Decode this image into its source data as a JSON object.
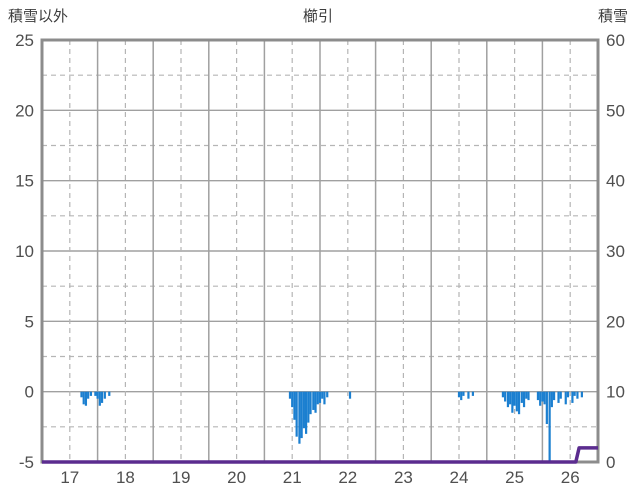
{
  "chart_data": {
    "type": "bar",
    "title": "櫛引",
    "left_axis": {
      "title": "積雪以外",
      "ticks": [
        25,
        20,
        15,
        10,
        5,
        0,
        -5
      ],
      "range": [
        -5,
        25
      ]
    },
    "right_axis": {
      "title": "積雪",
      "ticks": [
        60,
        50,
        40,
        30,
        20,
        10,
        0
      ],
      "range": [
        0,
        60
      ]
    },
    "x_axis": {
      "ticks": [
        17,
        18,
        19,
        20,
        21,
        22,
        23,
        24,
        25,
        26
      ],
      "range": [
        17,
        27
      ]
    },
    "grid": "on",
    "series": [
      {
        "name": "積雪以外",
        "type": "bar",
        "axis": "left",
        "color": "#1b7fd0",
        "points": [
          [
            17.71,
            -0.4
          ],
          [
            17.75,
            -0.9
          ],
          [
            17.79,
            -1.0
          ],
          [
            17.83,
            -0.5
          ],
          [
            17.88,
            -0.3
          ],
          [
            17.96,
            -0.3
          ],
          [
            18.0,
            -0.5
          ],
          [
            18.04,
            -1.0
          ],
          [
            18.08,
            -0.8
          ],
          [
            18.13,
            -0.5
          ],
          [
            18.21,
            -0.3
          ],
          [
            21.46,
            -0.5
          ],
          [
            21.5,
            -1.1
          ],
          [
            21.54,
            -2.0
          ],
          [
            21.58,
            -3.2
          ],
          [
            21.63,
            -3.7
          ],
          [
            21.67,
            -3.3
          ],
          [
            21.71,
            -2.6
          ],
          [
            21.75,
            -3.0
          ],
          [
            21.79,
            -2.2
          ],
          [
            21.83,
            -1.6
          ],
          [
            21.88,
            -1.3
          ],
          [
            21.92,
            -1.5
          ],
          [
            21.96,
            -0.9
          ],
          [
            22.0,
            -0.8
          ],
          [
            22.04,
            -0.5
          ],
          [
            22.08,
            -0.9
          ],
          [
            22.13,
            -0.4
          ],
          [
            22.54,
            -0.5
          ],
          [
            24.5,
            -0.4
          ],
          [
            24.54,
            -0.6
          ],
          [
            24.58,
            -0.3
          ],
          [
            24.67,
            -0.5
          ],
          [
            24.75,
            -0.3
          ],
          [
            25.29,
            -0.4
          ],
          [
            25.33,
            -0.7
          ],
          [
            25.38,
            -1.1
          ],
          [
            25.42,
            -0.9
          ],
          [
            25.46,
            -1.5
          ],
          [
            25.5,
            -1.0
          ],
          [
            25.54,
            -1.4
          ],
          [
            25.58,
            -1.6
          ],
          [
            25.63,
            -0.8
          ],
          [
            25.67,
            -1.1
          ],
          [
            25.71,
            -0.5
          ],
          [
            25.75,
            -0.6
          ],
          [
            25.92,
            -0.6
          ],
          [
            25.96,
            -1.0
          ],
          [
            26.0,
            -0.7
          ],
          [
            26.04,
            -0.9
          ],
          [
            26.08,
            -2.3
          ],
          [
            26.13,
            -5.0
          ],
          [
            26.17,
            -1.1
          ],
          [
            26.21,
            -0.6
          ],
          [
            26.29,
            -0.8
          ],
          [
            26.33,
            -0.5
          ],
          [
            26.42,
            -0.9
          ],
          [
            26.46,
            -0.4
          ],
          [
            26.54,
            -0.8
          ],
          [
            26.58,
            -0.3
          ],
          [
            26.63,
            -0.5
          ],
          [
            26.71,
            -0.4
          ]
        ]
      },
      {
        "name": "積雪",
        "type": "line",
        "axis": "right",
        "color": "#5b2c8f",
        "points": [
          [
            17,
            0
          ],
          [
            26.6,
            0
          ],
          [
            26.66,
            2
          ],
          [
            27,
            2
          ]
        ]
      }
    ],
    "colors": {
      "bar": "#1b7fd0",
      "snow_line": "#5b2c8f",
      "frame": "#8c8c8c",
      "grid_solid": "#a0a0a0",
      "grid_dashed": "#b5b5b5",
      "text": "#4f4f4f"
    }
  }
}
